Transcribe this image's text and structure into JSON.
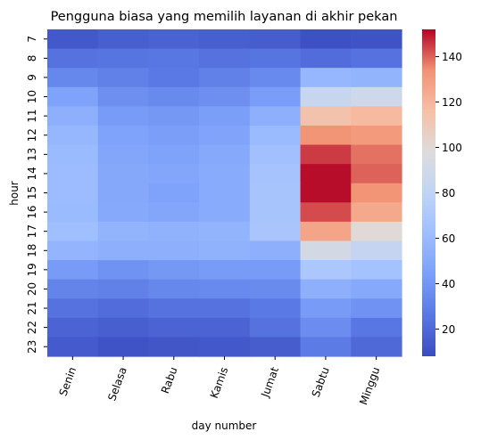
{
  "chart_data": {
    "type": "heatmap",
    "title": "Pengguna biasa yang memilih layanan di akhir pekan",
    "xlabel": "day number",
    "ylabel": "hour",
    "x_categories": [
      "Senin",
      "Selasa",
      "Rabu",
      "Kamis",
      "Jumat",
      "Sabtu",
      "Minggu"
    ],
    "y_categories": [
      "7",
      "8",
      "9",
      "10",
      "11",
      "12",
      "13",
      "14",
      "15",
      "16",
      "17",
      "18",
      "19",
      "20",
      "21",
      "22",
      "23"
    ],
    "values": [
      [
        13,
        16,
        17,
        16,
        15,
        10,
        11
      ],
      [
        24,
        25,
        26,
        24,
        25,
        22,
        24
      ],
      [
        33,
        30,
        27,
        30,
        34,
        58,
        56
      ],
      [
        46,
        37,
        34,
        37,
        43,
        84,
        88
      ],
      [
        54,
        42,
        41,
        44,
        53,
        114,
        118
      ],
      [
        58,
        46,
        44,
        47,
        60,
        133,
        131
      ],
      [
        60,
        48,
        46,
        50,
        64,
        145,
        138
      ],
      [
        61,
        49,
        48,
        51,
        66,
        151,
        140
      ],
      [
        61,
        49,
        46,
        51,
        67,
        151,
        133
      ],
      [
        60,
        50,
        48,
        51,
        67,
        143,
        125
      ],
      [
        63,
        56,
        55,
        56,
        68,
        127,
        100
      ],
      [
        57,
        53,
        54,
        55,
        54,
        92,
        83
      ],
      [
        42,
        38,
        41,
        42,
        42,
        69,
        65
      ],
      [
        32,
        30,
        33,
        34,
        35,
        54,
        50
      ],
      [
        24,
        22,
        24,
        24,
        27,
        42,
        38
      ],
      [
        18,
        16,
        18,
        18,
        24,
        36,
        26
      ],
      [
        14,
        11,
        12,
        13,
        15,
        28,
        20
      ]
    ],
    "colormap": "coolwarm",
    "vmin": 8,
    "vmax": 152,
    "colorbar_ticks": [
      20,
      40,
      60,
      80,
      100,
      120,
      140
    ]
  }
}
